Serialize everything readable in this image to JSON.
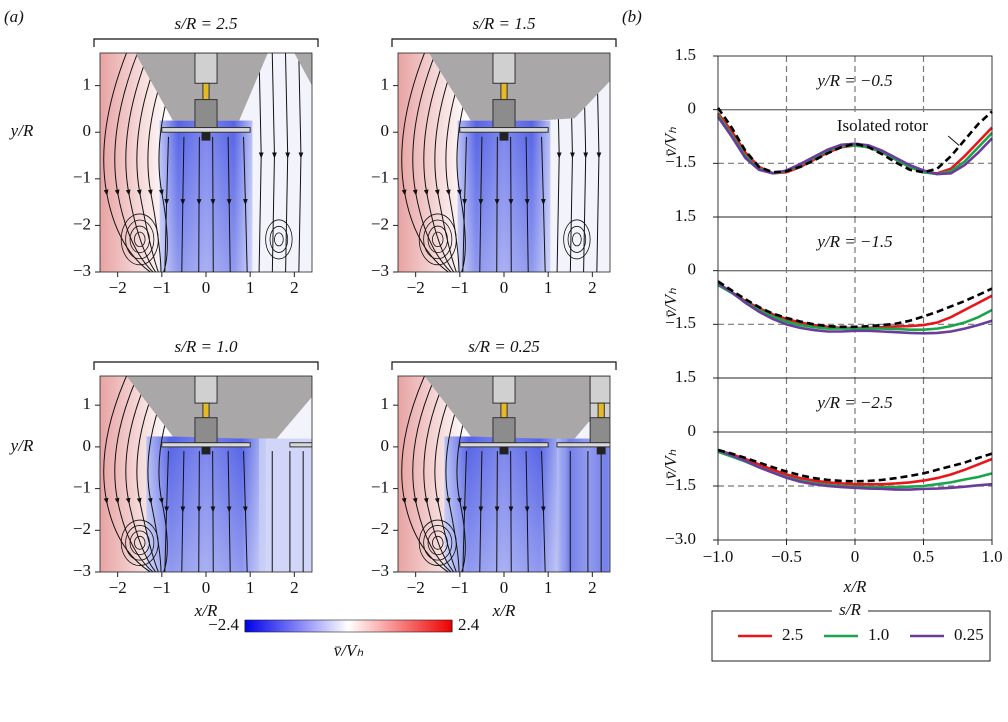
{
  "panel_labels": [
    "(a)",
    "(b)"
  ],
  "chart_data": [
    {
      "type": "contour",
      "title": "s/R = 2.5",
      "ylabel": "y/R",
      "xlim": [
        -2.4,
        2.4
      ],
      "ylim": [
        -3,
        1.7
      ],
      "xticks": [
        {
          "value": -2,
          "label": "−2"
        },
        {
          "value": -1,
          "label": "−1"
        },
        0,
        1,
        2
      ],
      "yticks": [
        {
          "value": -3,
          "label": "−3"
        },
        {
          "value": -2,
          "label": "−2"
        },
        {
          "value": -1,
          "label": "−1"
        },
        0,
        1
      ]
    },
    {
      "type": "contour",
      "title": "s/R = 1.5",
      "xlim": [
        -2.4,
        2.4
      ],
      "ylim": [
        -3,
        1.7
      ],
      "xticks": [
        {
          "value": -2,
          "label": "−2"
        },
        {
          "value": -1,
          "label": "−1"
        },
        0,
        1,
        2
      ],
      "yticks": [
        {
          "value": -3,
          "label": "−3"
        },
        {
          "value": -2,
          "label": "−2"
        },
        {
          "value": -1,
          "label": "−1"
        },
        0,
        1
      ]
    },
    {
      "type": "contour",
      "title": "s/R = 1.0",
      "ylabel": "y/R",
      "xlabel": "x/R",
      "xlim": [
        -2.4,
        2.4
      ],
      "ylim": [
        -3,
        1.7
      ],
      "xticks": [
        {
          "value": -2,
          "label": "−2"
        },
        {
          "value": -1,
          "label": "−1"
        },
        0,
        1,
        2
      ],
      "yticks": [
        {
          "value": -3,
          "label": "−3"
        },
        {
          "value": -2,
          "label": "−2"
        },
        {
          "value": -1,
          "label": "−1"
        },
        0,
        1
      ]
    },
    {
      "type": "contour",
      "title": "s/R = 0.25",
      "xlabel": "x/R",
      "xlim": [
        -2.4,
        2.4
      ],
      "ylim": [
        -3,
        1.7
      ],
      "xticks": [
        {
          "value": -2,
          "label": "−2"
        },
        {
          "value": -1,
          "label": "−1"
        },
        0,
        1,
        2
      ],
      "yticks": [
        {
          "value": -3,
          "label": "−3"
        },
        {
          "value": -2,
          "label": "−2"
        },
        {
          "value": -1,
          "label": "−1"
        },
        0,
        1
      ]
    },
    {
      "type": "line",
      "annotation": "y/R = −0.5",
      "callout": "Isolated rotor",
      "ylabel": "v̄/Vₕ",
      "xlim": [
        -1,
        1
      ],
      "ylim": [
        -3,
        1.5
      ],
      "xticks": [
        -1,
        -0.5,
        0,
        0.5,
        1
      ],
      "yticks": [
        1.5,
        0,
        {
          "value": -1.5,
          "label": "−1.5"
        }
      ],
      "grid": "dashed",
      "zero_line": true,
      "x": [
        -1,
        -0.9,
        -0.8,
        -0.7,
        -0.6,
        -0.5,
        -0.4,
        -0.3,
        -0.2,
        -0.1,
        0,
        0.1,
        0.2,
        0.3,
        0.4,
        0.5,
        0.6,
        0.7,
        0.8,
        0.9,
        1
      ],
      "series": [
        {
          "color": "#e8161b",
          "dashed": false,
          "values": [
            -0.1,
            -0.6,
            -1.2,
            -1.6,
            -1.78,
            -1.75,
            -1.6,
            -1.4,
            -1.2,
            -1.05,
            -1.0,
            -1.05,
            -1.2,
            -1.4,
            -1.6,
            -1.75,
            -1.78,
            -1.65,
            -1.3,
            -0.9,
            -0.5
          ]
        },
        {
          "color": "#1aa54b",
          "dashed": false,
          "values": [
            -0.15,
            -0.7,
            -1.3,
            -1.65,
            -1.78,
            -1.72,
            -1.55,
            -1.35,
            -1.15,
            -1.02,
            -1.0,
            -1.05,
            -1.2,
            -1.4,
            -1.6,
            -1.75,
            -1.8,
            -1.72,
            -1.45,
            -1.05,
            -0.65
          ]
        },
        {
          "color": "#6a3d9a",
          "dashed": false,
          "values": [
            -0.2,
            -0.75,
            -1.35,
            -1.68,
            -1.78,
            -1.7,
            -1.52,
            -1.32,
            -1.12,
            -0.98,
            -0.95,
            -1.0,
            -1.15,
            -1.35,
            -1.55,
            -1.7,
            -1.8,
            -1.78,
            -1.55,
            -1.2,
            -0.8
          ]
        },
        {
          "color": "#000000",
          "dashed": true,
          "values": [
            0.05,
            -0.5,
            -1.15,
            -1.6,
            -1.75,
            -1.72,
            -1.6,
            -1.42,
            -1.22,
            -1.05,
            -0.95,
            -1.05,
            -1.25,
            -1.48,
            -1.68,
            -1.75,
            -1.65,
            -1.3,
            -0.85,
            -0.4,
            -0.05
          ]
        }
      ]
    },
    {
      "type": "line",
      "annotation": "y/R = −1.5",
      "ylabel": "v̄/Vₕ",
      "xlim": [
        -1,
        1
      ],
      "ylim": [
        -3,
        1.5
      ],
      "xticks": [
        -1,
        -0.5,
        0,
        0.5,
        1
      ],
      "yticks": [
        1.5,
        0,
        {
          "value": -1.5,
          "label": "−1.5"
        }
      ],
      "grid": "dashed",
      "zero_line": true,
      "x": [
        -1,
        -0.9,
        -0.8,
        -0.7,
        -0.6,
        -0.5,
        -0.4,
        -0.3,
        -0.2,
        -0.1,
        0,
        0.1,
        0.2,
        0.3,
        0.4,
        0.5,
        0.6,
        0.7,
        0.8,
        0.9,
        1
      ],
      "series": [
        {
          "color": "#e8161b",
          "dashed": false,
          "values": [
            -0.4,
            -0.6,
            -0.85,
            -1.05,
            -1.22,
            -1.35,
            -1.45,
            -1.52,
            -1.57,
            -1.6,
            -1.6,
            -1.6,
            -1.58,
            -1.56,
            -1.55,
            -1.52,
            -1.45,
            -1.3,
            -1.1,
            -0.9,
            -0.7
          ]
        },
        {
          "color": "#1aa54b",
          "dashed": false,
          "values": [
            -0.4,
            -0.62,
            -0.88,
            -1.1,
            -1.28,
            -1.42,
            -1.52,
            -1.58,
            -1.62,
            -1.62,
            -1.62,
            -1.62,
            -1.62,
            -1.63,
            -1.65,
            -1.65,
            -1.62,
            -1.55,
            -1.45,
            -1.3,
            -1.1
          ]
        },
        {
          "color": "#6a3d9a",
          "dashed": false,
          "values": [
            -0.35,
            -0.6,
            -0.9,
            -1.15,
            -1.35,
            -1.5,
            -1.6,
            -1.66,
            -1.7,
            -1.7,
            -1.68,
            -1.68,
            -1.7,
            -1.72,
            -1.74,
            -1.75,
            -1.74,
            -1.7,
            -1.62,
            -1.52,
            -1.4
          ]
        },
        {
          "color": "#000000",
          "dashed": true,
          "values": [
            -0.3,
            -0.55,
            -0.8,
            -1.02,
            -1.2,
            -1.32,
            -1.42,
            -1.5,
            -1.55,
            -1.57,
            -1.57,
            -1.55,
            -1.52,
            -1.48,
            -1.4,
            -1.28,
            -1.15,
            -1.0,
            -0.85,
            -0.68,
            -0.5
          ]
        }
      ]
    },
    {
      "type": "line",
      "annotation": "y/R = −2.5",
      "ylabel": "v̄/Vₕ",
      "xlabel": "x/R",
      "xlim": [
        -1,
        1
      ],
      "ylim": [
        -3,
        1.5
      ],
      "xticks": [
        {
          "value": -1,
          "label": "−1.0"
        },
        {
          "value": -0.5,
          "label": "−0.5"
        },
        0,
        0.5,
        {
          "value": 1,
          "label": "1.0"
        }
      ],
      "yticks": [
        1.5,
        0,
        {
          "value": -1.5,
          "label": "−1.5"
        },
        {
          "value": -3,
          "label": "−3.0"
        }
      ],
      "grid": "dashed",
      "zero_line": true,
      "x": [
        -1,
        -0.9,
        -0.8,
        -0.7,
        -0.6,
        -0.5,
        -0.4,
        -0.3,
        -0.2,
        -0.1,
        0,
        0.1,
        0.2,
        0.3,
        0.4,
        0.5,
        0.6,
        0.7,
        0.8,
        0.9,
        1
      ],
      "series": [
        {
          "color": "#e8161b",
          "dashed": false,
          "values": [
            -0.5,
            -0.62,
            -0.75,
            -0.9,
            -1.05,
            -1.18,
            -1.28,
            -1.35,
            -1.4,
            -1.43,
            -1.45,
            -1.45,
            -1.45,
            -1.43,
            -1.4,
            -1.35,
            -1.28,
            -1.18,
            -1.05,
            -0.9,
            -0.75
          ]
        },
        {
          "color": "#1aa54b",
          "dashed": false,
          "values": [
            -0.55,
            -0.68,
            -0.82,
            -0.98,
            -1.12,
            -1.25,
            -1.35,
            -1.42,
            -1.47,
            -1.5,
            -1.52,
            -1.53,
            -1.53,
            -1.53,
            -1.52,
            -1.5,
            -1.45,
            -1.4,
            -1.32,
            -1.25,
            -1.15
          ]
        },
        {
          "color": "#6a3d9a",
          "dashed": false,
          "values": [
            -0.5,
            -0.65,
            -0.8,
            -0.98,
            -1.13,
            -1.27,
            -1.38,
            -1.45,
            -1.5,
            -1.53,
            -1.55,
            -1.57,
            -1.58,
            -1.6,
            -1.6,
            -1.58,
            -1.57,
            -1.55,
            -1.52,
            -1.48,
            -1.45
          ]
        },
        {
          "color": "#000000",
          "dashed": true,
          "values": [
            -0.5,
            -0.6,
            -0.72,
            -0.85,
            -0.98,
            -1.1,
            -1.2,
            -1.28,
            -1.33,
            -1.36,
            -1.37,
            -1.36,
            -1.33,
            -1.28,
            -1.22,
            -1.15,
            -1.05,
            -0.95,
            -0.85,
            -0.72,
            -0.6
          ]
        }
      ]
    }
  ],
  "colorbar": {
    "lim": [
      -2.4,
      2.4
    ],
    "ticks": [
      {
        "value": -2.4,
        "label": "−2.4"
      },
      2.4
    ],
    "label": "v̄/Vₕ"
  },
  "legend": {
    "title": "s/R",
    "entries": [
      {
        "label": "2.5",
        "color": "#e8161b"
      },
      {
        "label": "1.0",
        "color": "#1aa54b"
      },
      {
        "label": "0.25",
        "color": "#6a3d9a"
      }
    ]
  }
}
